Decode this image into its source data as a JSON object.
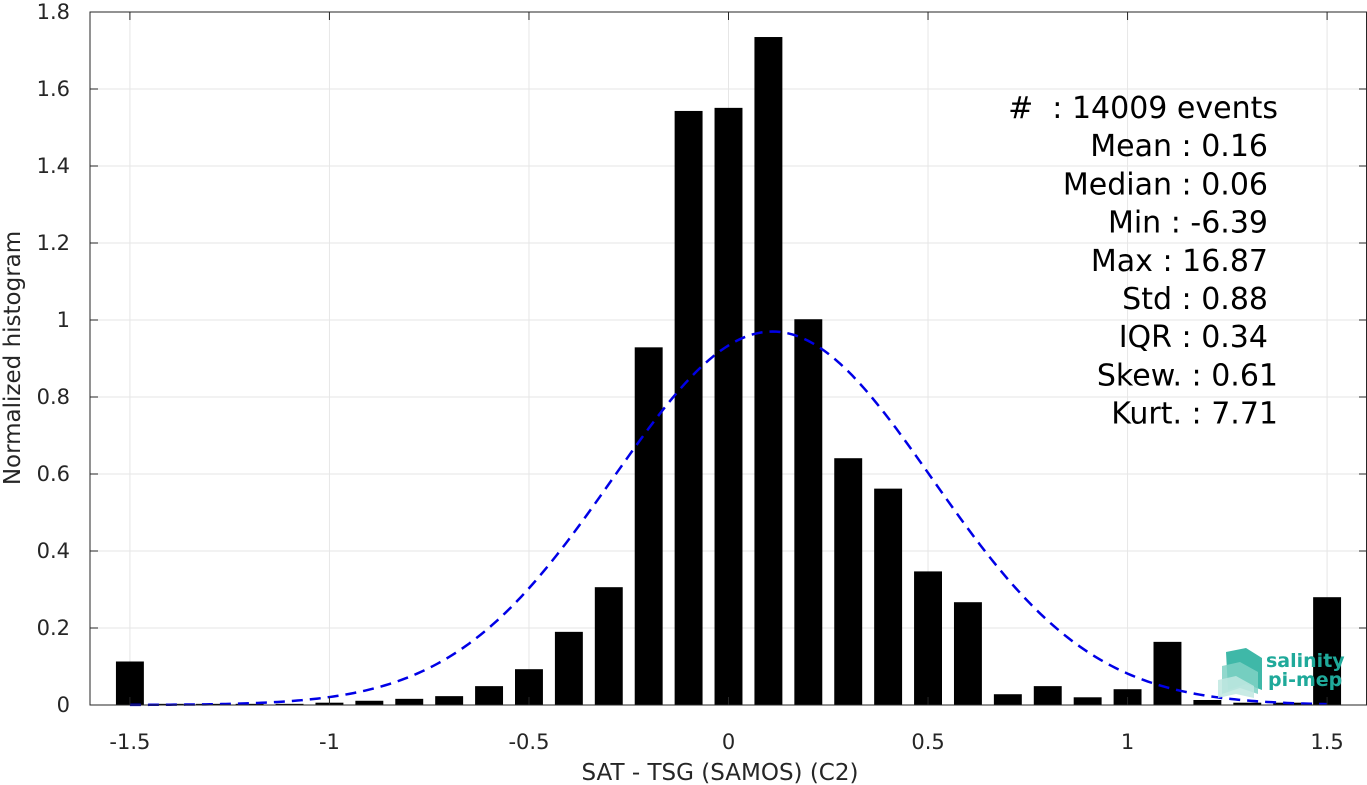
{
  "chart_data": {
    "type": "bar",
    "xlabel": "SAT - TSG (SAMOS) (C2)",
    "ylabel": "Normalized histogram",
    "xlim": [
      -1.6,
      1.6
    ],
    "ylim": [
      0,
      1.8
    ],
    "xticks": [
      -1.5,
      -1,
      -0.5,
      0,
      0.5,
      1,
      1.5
    ],
    "xtick_labels": [
      "-1.5",
      "-1",
      "-0.5",
      "0",
      "0.5",
      "1",
      "1.5"
    ],
    "yticks": [
      0,
      0.2,
      0.4,
      0.6,
      0.8,
      1,
      1.2,
      1.4,
      1.6,
      1.8
    ],
    "ytick_labels": [
      "0",
      "0.2",
      "0.4",
      "0.6",
      "0.8",
      "1",
      "1.2",
      "1.4",
      "1.6",
      "1.8"
    ],
    "grid": true,
    "bar_width": 0.07,
    "bar_color": "#000000",
    "x": [
      -1.5,
      -1.4,
      -1.3,
      -1.2,
      -1.1,
      -1.0,
      -0.9,
      -0.8,
      -0.7,
      -0.6,
      -0.5,
      -0.4,
      -0.3,
      -0.2,
      -0.1,
      0.0,
      0.1,
      0.2,
      0.3,
      0.4,
      0.5,
      0.6,
      0.7,
      0.8,
      0.9,
      1.0,
      1.1,
      1.2,
      1.3,
      1.4,
      1.5
    ],
    "values": [
      0.113,
      0.003,
      0.003,
      0.003,
      0.003,
      0.006,
      0.011,
      0.016,
      0.023,
      0.049,
      0.093,
      0.19,
      0.306,
      0.929,
      1.543,
      1.551,
      1.735,
      1.002,
      0.641,
      0.562,
      0.347,
      0.267,
      0.028,
      0.049,
      0.02,
      0.041,
      0.164,
      0.013,
      0.006,
      0.006,
      0.28
    ],
    "fit_curve": {
      "style": "dashed",
      "color": "#0000e6",
      "mean": 0.11,
      "std": 0.4,
      "peak": 0.97,
      "x_range": [
        -1.5,
        1.5
      ]
    },
    "stats_box": {
      "lines": [
        "#  : 14009 events",
        "Mean : 0.16",
        "Median : 0.06",
        "Min : -6.39",
        "Max : 16.87",
        "Std : 0.88",
        "IQR : 0.34",
        "Skew. : 0.61",
        "Kurt. : 7.71"
      ],
      "placement": "top-right"
    },
    "logo": {
      "line1": "salinity",
      "line2": "pi-mep",
      "color": "#1fa99a"
    }
  }
}
